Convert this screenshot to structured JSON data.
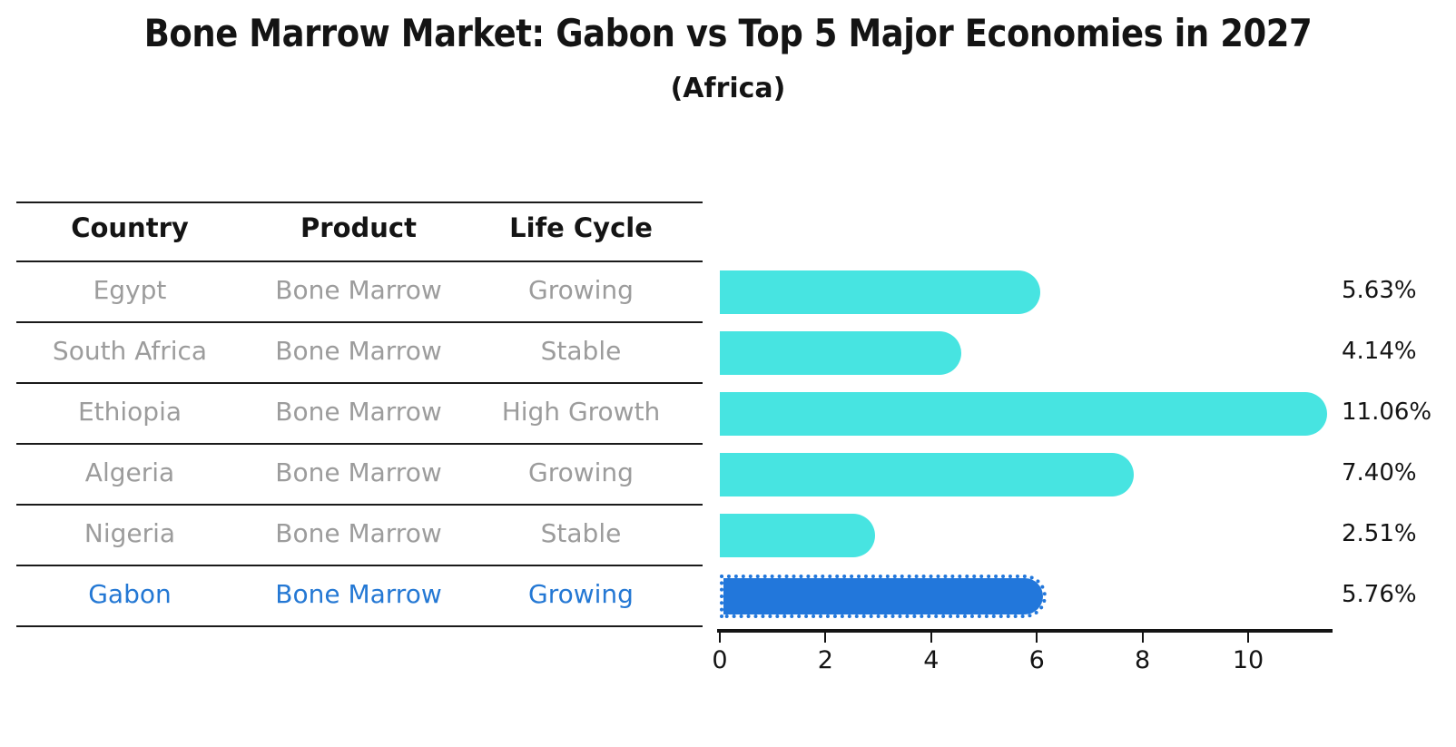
{
  "title": "Bone Marrow Market: Gabon vs Top 5 Major Economies in 2027",
  "subtitle": "(Africa)",
  "table": {
    "headers": [
      "Country",
      "Product",
      "Life Cycle"
    ],
    "rows": [
      {
        "country": "Egypt",
        "product": "Bone Marrow",
        "life_cycle": "Growing",
        "highlight": false
      },
      {
        "country": "South Africa",
        "product": "Bone Marrow",
        "life_cycle": "Stable",
        "highlight": false
      },
      {
        "country": "Ethiopia",
        "product": "Bone Marrow",
        "life_cycle": "High Growth",
        "highlight": false
      },
      {
        "country": "Algeria",
        "product": "Bone Marrow",
        "life_cycle": "Growing",
        "highlight": false
      },
      {
        "country": "Nigeria",
        "product": "Bone Marrow",
        "life_cycle": "Stable",
        "highlight": false
      },
      {
        "country": "Gabon",
        "product": "Bone Marrow",
        "life_cycle": "Growing",
        "highlight": true
      }
    ]
  },
  "chart_data": {
    "type": "bar",
    "orientation": "horizontal",
    "categories": [
      "Egypt",
      "South Africa",
      "Ethiopia",
      "Algeria",
      "Nigeria",
      "Gabon"
    ],
    "values": [
      5.63,
      4.14,
      11.06,
      7.4,
      2.51,
      5.76
    ],
    "value_labels": [
      "5.63%",
      "4.14%",
      "11.06%",
      "7.40%",
      "2.51%",
      "5.76%"
    ],
    "title": "Bone Marrow Market: Gabon vs Top 5 Major Economies in 2027",
    "subtitle": "(Africa)",
    "xlabel": "",
    "ylabel": "",
    "x_ticks": [
      0,
      2,
      4,
      6,
      8,
      10
    ],
    "x_tick_labels": [
      "0",
      "2",
      "4",
      "6",
      "8",
      "10"
    ],
    "xlim": [
      0,
      11.6
    ],
    "grid": false,
    "legend": false,
    "bar_color": "#47E4E1",
    "highlight_color": "#2277DB",
    "highlight_index": 5,
    "highlight_edge_style": "dotted"
  },
  "colors": {
    "background": "#ffffff",
    "bar_cyan": "#47E4E1",
    "bar_blue": "#2277DB",
    "row_text_gray": "#9C9C9C",
    "highlight_text_blue": "#2478D4",
    "line_black": "#1A1A1A",
    "axis_black": "#141414"
  }
}
